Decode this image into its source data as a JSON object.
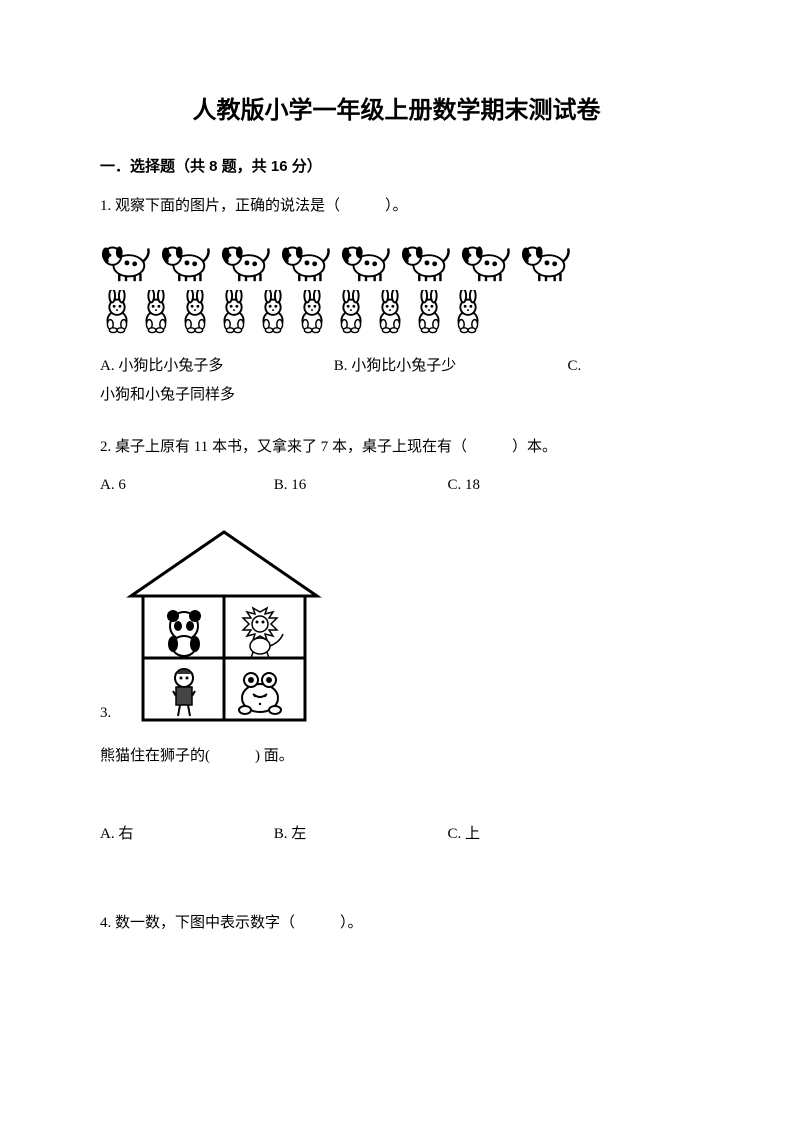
{
  "title": "人教版小学一年级上册数学期末测试卷",
  "section1": {
    "header": "一．选择题（共 8 题，共 16 分）"
  },
  "q1": {
    "text": "1. 观察下面的图片，正确的说法是（　　　）。",
    "dogs_count": 8,
    "rabbits_count": 10,
    "optA": "A. 小狗比小兔子多",
    "optB": "B. 小狗比小兔子少",
    "optC_prefix": "C.",
    "optC_rest": "小狗和小兔子同样多"
  },
  "q2": {
    "text": "2. 桌子上原有 11 本书，又拿来了 7 本，桌子上现在有（　　　）本。",
    "optA": "A. 6",
    "optB": "B. 16",
    "optC": "C. 18"
  },
  "q3": {
    "num": "3.",
    "text_after": "熊猫住在狮子的(　　　) 面。",
    "optA": "A. 右",
    "optB": "B. 左",
    "optC": "C. 上",
    "house": {
      "grid_cells": [
        "panda",
        "lion",
        "person",
        "frog"
      ]
    }
  },
  "q4": {
    "text": "4. 数一数，下图中表示数字（　　　）。"
  },
  "colors": {
    "text": "#000000",
    "background": "#ffffff",
    "stroke": "#000000"
  },
  "typography": {
    "title_fontsize": 24,
    "body_fontsize": 15,
    "title_font": "SimHei",
    "body_font": "SimSun"
  }
}
